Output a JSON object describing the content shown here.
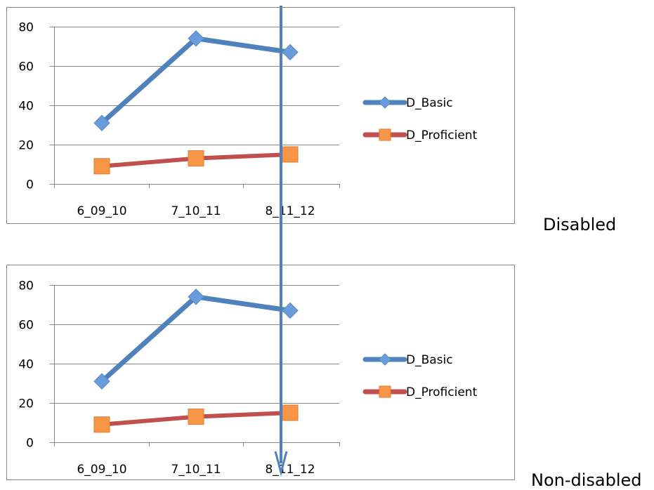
{
  "chart_data": [
    {
      "type": "line",
      "categories": [
        "6_09_10",
        "7_10_11",
        "8_11_12"
      ],
      "series": [
        {
          "name": "D_Basic",
          "values": [
            31,
            74,
            67
          ],
          "color": "#4F81BD",
          "marker": "diamond",
          "marker_color": "#6A9BDC"
        },
        {
          "name": "D_Proficient",
          "values": [
            9,
            13,
            15
          ],
          "color": "#C0504D",
          "marker": "square",
          "marker_color": "#F79646"
        }
      ],
      "yticks": [
        "0",
        "20",
        "40",
        "60",
        "80"
      ],
      "ylim": [
        0,
        80
      ],
      "grid": true,
      "legend": "right",
      "side_label": "Disabled"
    },
    {
      "type": "line",
      "categories": [
        "6_09_10",
        "7_10_11",
        "8_11_12"
      ],
      "series": [
        {
          "name": "D_Basic",
          "values": [
            31,
            74,
            67
          ],
          "color": "#4F81BD",
          "marker": "diamond",
          "marker_color": "#6A9BDC"
        },
        {
          "name": "D_Proficient",
          "values": [
            9,
            13,
            15
          ],
          "color": "#C0504D",
          "marker": "square",
          "marker_color": "#F79646"
        }
      ],
      "yticks": [
        "0",
        "20",
        "40",
        "60",
        "80"
      ],
      "ylim": [
        0,
        80
      ],
      "grid": true,
      "legend": "right",
      "side_label": "Non-disabled"
    }
  ],
  "annotation": {
    "type": "vertical-arrow",
    "color": "#4F81BD",
    "category": "8_11_12",
    "direction": "down"
  }
}
